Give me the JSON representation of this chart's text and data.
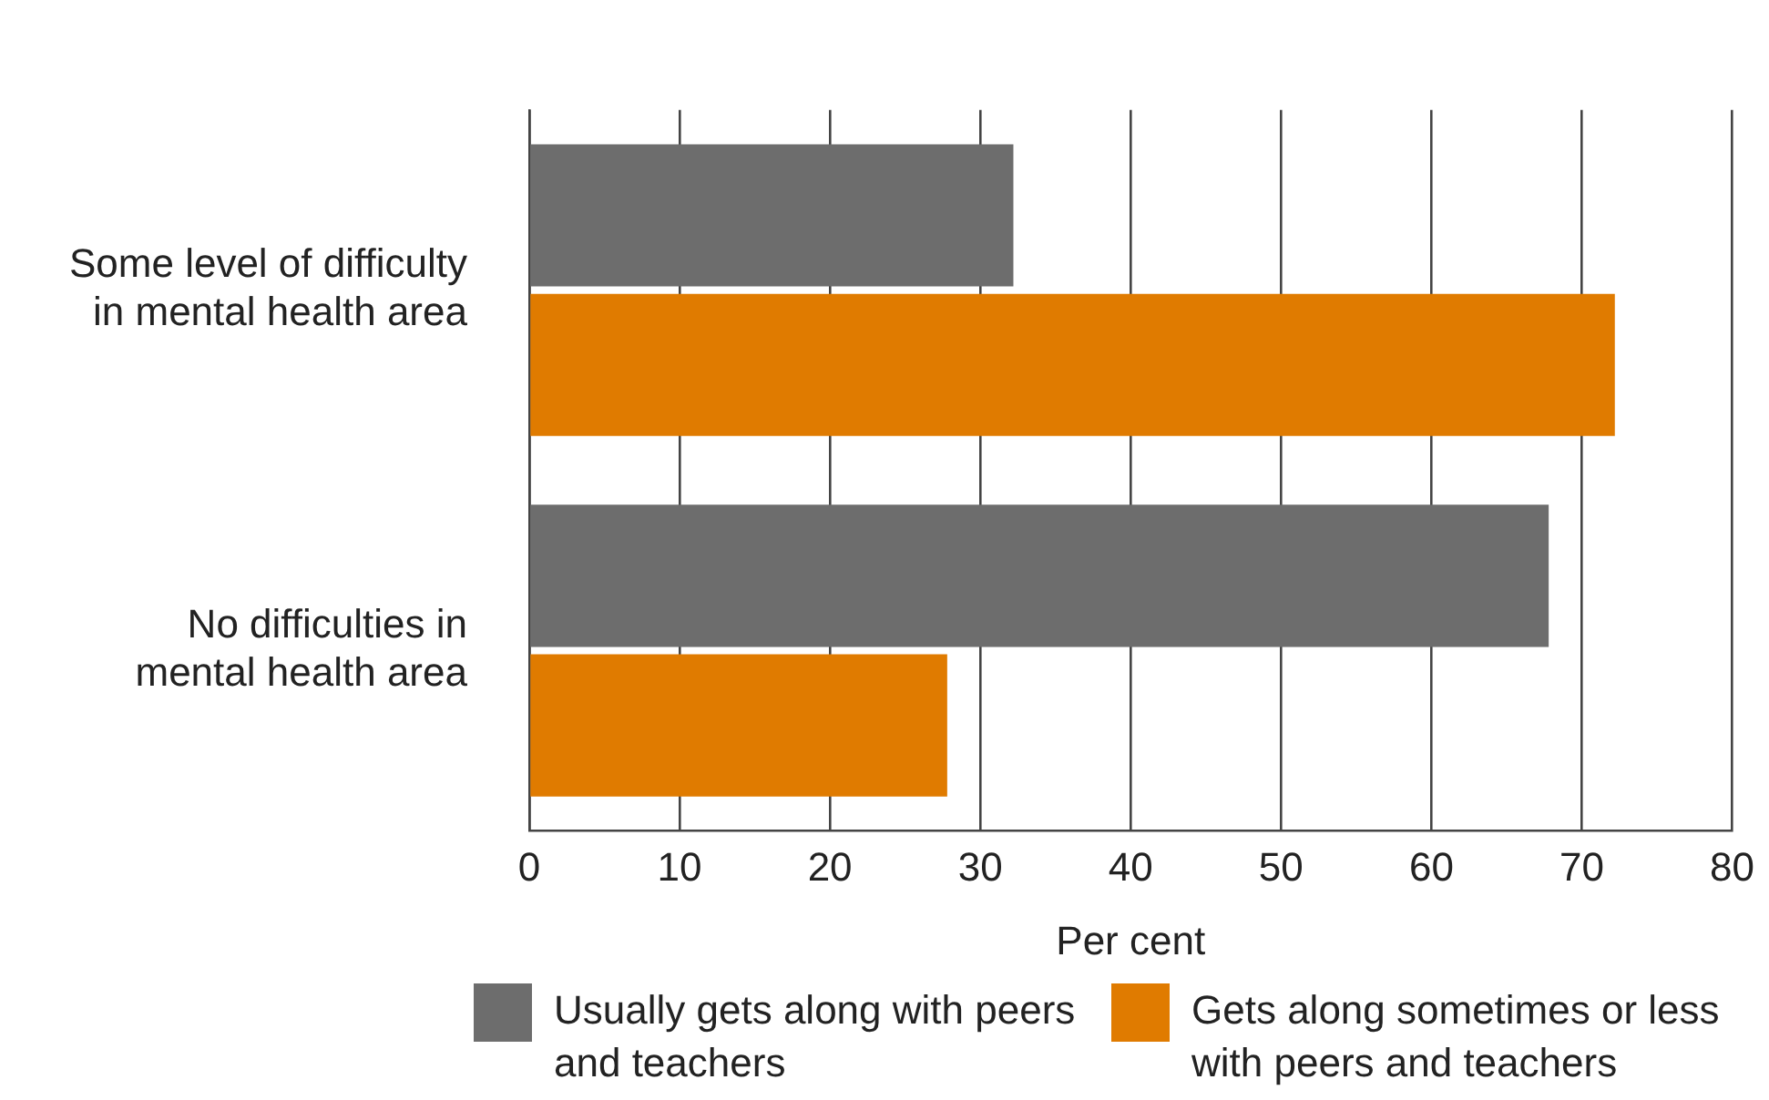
{
  "chart_data": {
    "type": "bar",
    "orientation": "horizontal",
    "xlabel": "Per cent",
    "categories": [
      "Some level of difficulty in mental health area",
      "No difficulties in mental health area"
    ],
    "series": [
      {
        "name": "Usually gets along with peers and teachers",
        "color": "#6d6d6d",
        "values": [
          32.2,
          67.8
        ]
      },
      {
        "name": "Gets along sometimes or less with peers and teachers",
        "color": "#e07b00",
        "values": [
          72.2,
          27.8
        ]
      }
    ],
    "xlim": [
      0,
      80
    ],
    "xticks": [
      0,
      10,
      20,
      30,
      40,
      50,
      60,
      70,
      80
    ],
    "grid": "x",
    "legend": "bottom"
  }
}
